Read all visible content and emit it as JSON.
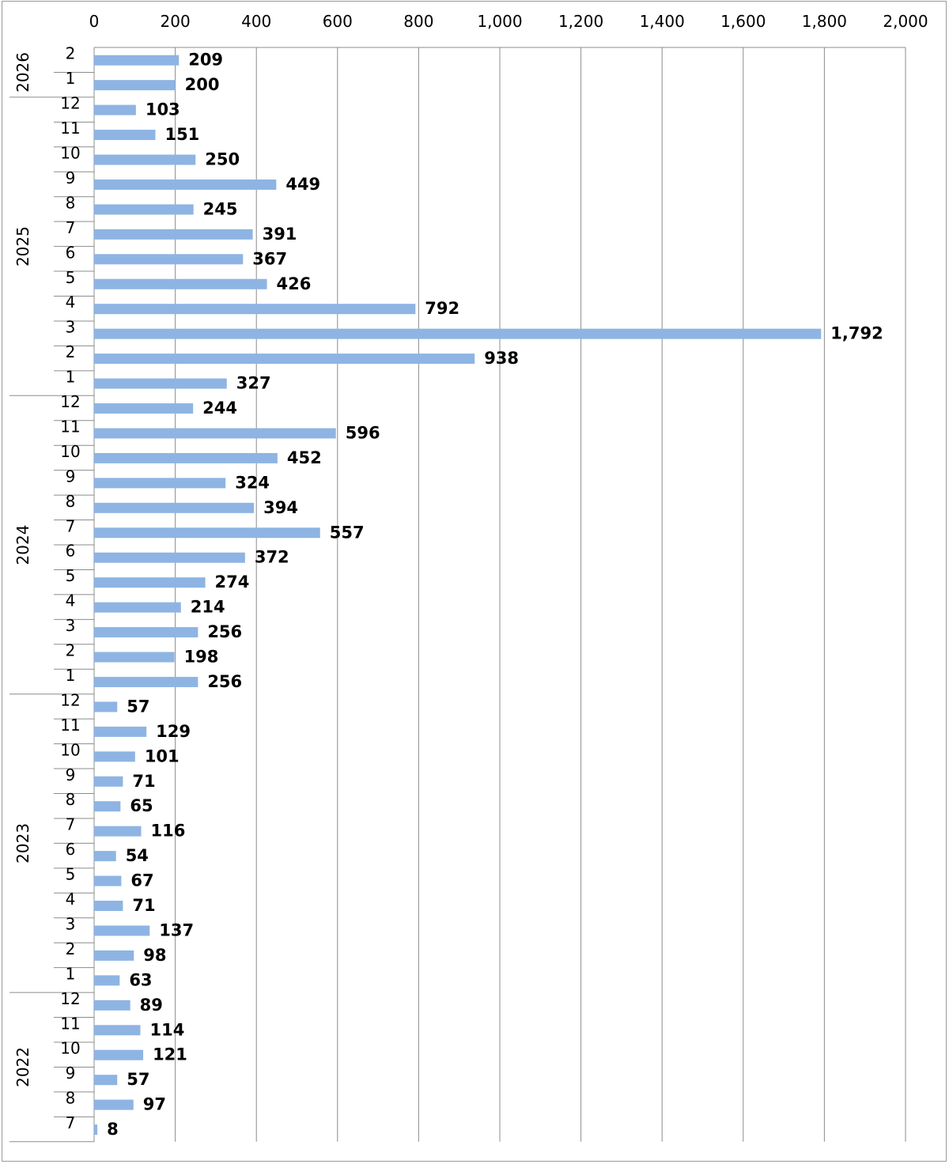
{
  "chart_data": {
    "type": "bar",
    "orientation": "horizontal",
    "title": "",
    "xlabel": "",
    "ylabel": "",
    "xlim": [
      0,
      2000
    ],
    "x_ticks": [
      0,
      200,
      400,
      600,
      800,
      1000,
      1200,
      1400,
      1600,
      1800,
      2000
    ],
    "x_tick_labels": [
      "0",
      "200",
      "400",
      "600",
      "800",
      "1,000",
      "1,200",
      "1,400",
      "1,600",
      "1,800",
      "2,000"
    ],
    "x_axis_position": "top",
    "grid": true,
    "bar_color": "#8EB4E3",
    "groups": [
      {
        "year": "2026",
        "months": [
          "2",
          "1"
        ],
        "values": [
          209,
          200
        ],
        "labels": [
          "209",
          "200"
        ]
      },
      {
        "year": "2025",
        "months": [
          "12",
          "11",
          "10",
          "9",
          "8",
          "7",
          "6",
          "5",
          "4",
          "3",
          "2",
          "1"
        ],
        "values": [
          103,
          151,
          250,
          449,
          245,
          391,
          367,
          426,
          792,
          1792,
          938,
          327
        ],
        "labels": [
          "103",
          "151",
          "250",
          "449",
          "245",
          "391",
          "367",
          "426",
          "792",
          "1,792",
          "938",
          "327"
        ]
      },
      {
        "year": "2024",
        "months": [
          "12",
          "11",
          "10",
          "9",
          "8",
          "7",
          "6",
          "5",
          "4",
          "3",
          "2",
          "1"
        ],
        "values": [
          244,
          596,
          452,
          324,
          394,
          557,
          372,
          274,
          214,
          256,
          198,
          256
        ],
        "labels": [
          "244",
          "596",
          "452",
          "324",
          "394",
          "557",
          "372",
          "274",
          "214",
          "256",
          "198",
          "256"
        ]
      },
      {
        "year": "2023",
        "months": [
          "12",
          "11",
          "10",
          "9",
          "8",
          "7",
          "6",
          "5",
          "4",
          "3",
          "2",
          "1"
        ],
        "values": [
          57,
          129,
          101,
          71,
          65,
          116,
          54,
          67,
          71,
          137,
          98,
          63
        ],
        "labels": [
          "57",
          "129",
          "101",
          "71",
          "65",
          "116",
          "54",
          "67",
          "71",
          "137",
          "98",
          "63"
        ]
      },
      {
        "year": "2022",
        "months": [
          "12",
          "11",
          "10",
          "9",
          "8",
          "7"
        ],
        "values": [
          89,
          114,
          121,
          57,
          97,
          8
        ],
        "labels": [
          "89",
          "114",
          "121",
          "57",
          "97",
          "8"
        ]
      }
    ]
  }
}
